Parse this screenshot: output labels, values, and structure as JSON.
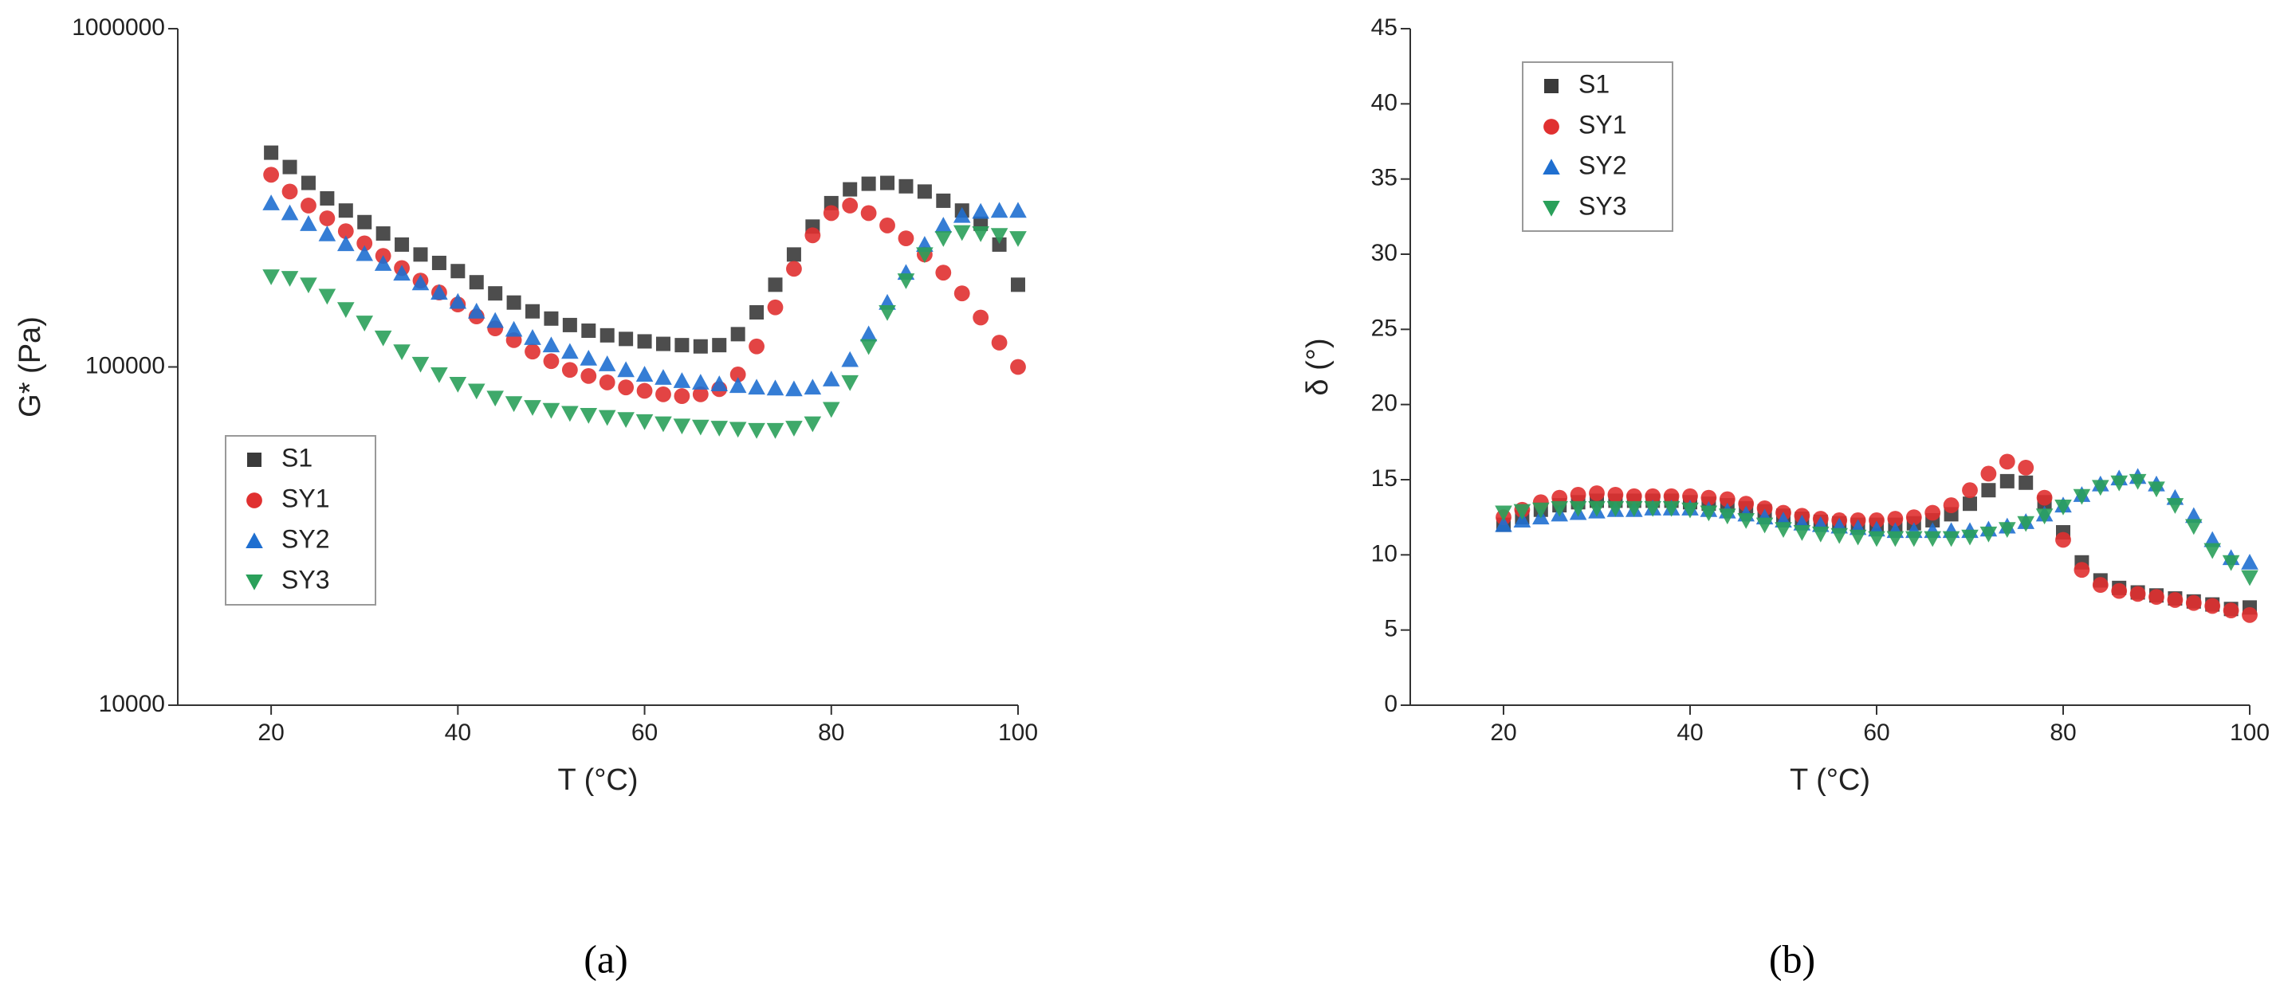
{
  "chart_data": [
    {
      "type": "scatter",
      "caption": "(a)",
      "xlabel": "T (°C)",
      "ylabel": "G* (Pa)",
      "yscale": "log",
      "xlim": [
        10,
        100
      ],
      "xticks": [
        20,
        40,
        60,
        80,
        100
      ],
      "ylim": [
        10000,
        1000000
      ],
      "yticks": [
        10000,
        100000,
        1000000
      ],
      "legend": "lower left",
      "x": [
        20,
        22,
        24,
        26,
        28,
        30,
        32,
        34,
        36,
        38,
        40,
        42,
        44,
        46,
        48,
        50,
        52,
        54,
        56,
        58,
        60,
        62,
        64,
        66,
        68,
        70,
        72,
        74,
        76,
        78,
        80,
        82,
        84,
        86,
        88,
        90,
        92,
        94,
        96,
        98,
        100
      ],
      "series": [
        {
          "name": "S1",
          "color": "#3a3a3a",
          "marker": "square",
          "values": [
            430000,
            390000,
            350000,
            315000,
            290000,
            268000,
            248000,
            230000,
            215000,
            203000,
            192000,
            178000,
            165000,
            155000,
            146000,
            139000,
            133000,
            128000,
            124000,
            121000,
            119000,
            117000,
            116000,
            115000,
            116000,
            125000,
            145000,
            175000,
            215000,
            260000,
            305000,
            335000,
            348000,
            350000,
            342000,
            330000,
            310000,
            290000,
            265000,
            230000,
            175000
          ]
        },
        {
          "name": "SY1",
          "color": "#e03030",
          "marker": "circle",
          "values": [
            370000,
            330000,
            300000,
            275000,
            252000,
            232000,
            213000,
            196000,
            180000,
            166000,
            153000,
            141000,
            130000,
            120000,
            111000,
            104000,
            98000,
            94000,
            90000,
            87000,
            85000,
            83000,
            82000,
            83000,
            86000,
            95000,
            115000,
            150000,
            195000,
            245000,
            285000,
            300000,
            285000,
            262000,
            240000,
            215000,
            190000,
            165000,
            140000,
            118000,
            100000
          ]
        },
        {
          "name": "SY2",
          "color": "#1f6fd0",
          "marker": "triangle-up",
          "values": [
            305000,
            285000,
            265000,
            247000,
            231000,
            216000,
            202000,
            189000,
            177000,
            166000,
            156000,
            146000,
            137000,
            129000,
            122000,
            116000,
            111000,
            106000,
            102000,
            98000,
            95000,
            93000,
            91000,
            90000,
            89000,
            88000,
            87000,
            86500,
            86000,
            87000,
            92000,
            105000,
            125000,
            155000,
            190000,
            230000,
            262000,
            280000,
            288000,
            290000,
            290000
          ]
        },
        {
          "name": "SY3",
          "color": "#2aa05a",
          "marker": "triangle-down",
          "values": [
            185000,
            183000,
            175000,
            162000,
            148000,
            135000,
            122000,
            111000,
            102000,
            95000,
            89000,
            85000,
            81000,
            78000,
            76000,
            74500,
            73000,
            72000,
            71000,
            70000,
            69000,
            68000,
            67000,
            66500,
            66000,
            65500,
            65000,
            65000,
            66000,
            68000,
            75000,
            90000,
            115000,
            145000,
            180000,
            215000,
            240000,
            250000,
            248000,
            245000,
            240000
          ]
        }
      ]
    },
    {
      "type": "scatter",
      "caption": "(b)",
      "xlabel": "T (°C)",
      "ylabel": "δ (°)",
      "yscale": "linear",
      "xlim": [
        10,
        100
      ],
      "xticks": [
        20,
        40,
        60,
        80,
        100
      ],
      "ylim": [
        0,
        45
      ],
      "yticks": [
        0,
        5,
        10,
        15,
        20,
        25,
        30,
        35,
        40,
        45
      ],
      "legend": "upper left",
      "x": [
        20,
        22,
        24,
        26,
        28,
        30,
        32,
        34,
        36,
        38,
        40,
        42,
        44,
        46,
        48,
        50,
        52,
        54,
        56,
        58,
        60,
        62,
        64,
        66,
        68,
        70,
        72,
        74,
        76,
        78,
        80,
        82,
        84,
        86,
        88,
        90,
        92,
        94,
        96,
        98,
        100
      ],
      "series": [
        {
          "name": "S1",
          "color": "#3a3a3a",
          "marker": "square",
          "values": [
            12,
            12.5,
            13,
            13.3,
            13.5,
            13.6,
            13.6,
            13.6,
            13.6,
            13.6,
            13.5,
            13.4,
            13.3,
            13.1,
            12.9,
            12.6,
            12.4,
            12.2,
            12.1,
            12,
            12,
            12,
            12.1,
            12.3,
            12.7,
            13.4,
            14.3,
            14.9,
            14.8,
            13.5,
            11.5,
            9.5,
            8.3,
            7.8,
            7.5,
            7.3,
            7.1,
            6.9,
            6.7,
            6.4,
            6.5
          ]
        },
        {
          "name": "SY1",
          "color": "#e03030",
          "marker": "circle",
          "values": [
            12.5,
            13,
            13.5,
            13.8,
            14,
            14.1,
            14,
            13.9,
            13.9,
            13.9,
            13.9,
            13.8,
            13.7,
            13.4,
            13.1,
            12.8,
            12.6,
            12.4,
            12.3,
            12.3,
            12.3,
            12.4,
            12.5,
            12.8,
            13.3,
            14.3,
            15.4,
            16.2,
            15.8,
            13.8,
            11,
            9,
            8,
            7.6,
            7.4,
            7.2,
            7,
            6.8,
            6.6,
            6.3,
            6
          ]
        },
        {
          "name": "SY2",
          "color": "#1f6fd0",
          "marker": "triangle-up",
          "values": [
            12,
            12.3,
            12.5,
            12.7,
            12.8,
            12.9,
            13,
            13,
            13.1,
            13.1,
            13.1,
            13,
            12.9,
            12.7,
            12.5,
            12.3,
            12.1,
            12,
            11.9,
            11.8,
            11.7,
            11.6,
            11.6,
            11.6,
            11.6,
            11.6,
            11.7,
            11.9,
            12.2,
            12.7,
            13.3,
            14,
            14.7,
            15.1,
            15.2,
            14.7,
            13.8,
            12.6,
            11,
            9.8,
            9.5
          ]
        },
        {
          "name": "SY3",
          "color": "#2aa05a",
          "marker": "triangle-down",
          "values": [
            12.8,
            12.9,
            13,
            13.1,
            13.1,
            13.1,
            13.1,
            13.1,
            13.1,
            13.1,
            13,
            12.8,
            12.6,
            12.3,
            12,
            11.7,
            11.5,
            11.4,
            11.3,
            11.2,
            11.1,
            11.1,
            11.1,
            11.1,
            11.1,
            11.2,
            11.4,
            11.7,
            12.1,
            12.6,
            13.2,
            13.9,
            14.5,
            14.8,
            14.9,
            14.4,
            13.3,
            11.9,
            10.3,
            9.5,
            8.5
          ]
        }
      ]
    }
  ]
}
